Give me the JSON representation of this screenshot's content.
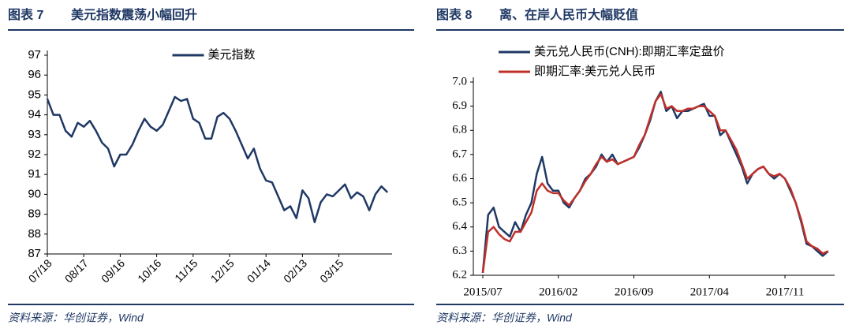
{
  "chart_data": [
    {
      "type": "line",
      "figure_label": "图表 7",
      "title": "美元指数震荡小幅回升",
      "source": "资料来源：华创证券，Wind",
      "legend": "upper center",
      "grid": false,
      "categories": [
        "07/18",
        null,
        null,
        null,
        null,
        null,
        "08/17",
        null,
        null,
        null,
        null,
        null,
        "09/16",
        null,
        null,
        null,
        null,
        null,
        "10/16",
        null,
        null,
        null,
        null,
        null,
        "11/15",
        null,
        null,
        null,
        null,
        null,
        "12/15",
        null,
        null,
        null,
        null,
        null,
        "01/14",
        null,
        null,
        null,
        null,
        null,
        "02/13",
        null,
        null,
        null,
        null,
        null,
        "03/15",
        null,
        null,
        null,
        null,
        null,
        null,
        null,
        null
      ],
      "ylim": [
        87,
        97
      ],
      "yticks": [
        87,
        88,
        89,
        90,
        91,
        92,
        93,
        94,
        95,
        96,
        97
      ],
      "series": [
        {
          "name": "美元指数",
          "color": "#1f3864",
          "values": [
            94.8,
            94.0,
            94.0,
            93.2,
            92.9,
            93.6,
            93.4,
            93.7,
            93.2,
            92.6,
            92.3,
            91.4,
            92.0,
            92.0,
            92.5,
            93.2,
            93.8,
            93.4,
            93.2,
            93.5,
            94.2,
            94.9,
            94.7,
            94.8,
            93.8,
            93.6,
            92.8,
            92.8,
            93.9,
            94.1,
            93.8,
            93.2,
            92.5,
            91.8,
            92.3,
            91.3,
            90.7,
            90.6,
            89.9,
            89.2,
            89.4,
            88.8,
            90.2,
            89.8,
            88.6,
            89.6,
            90.0,
            89.9,
            90.2,
            90.5,
            89.8,
            90.1,
            89.9,
            89.2,
            90.0,
            90.4,
            90.1
          ]
        }
      ]
    },
    {
      "type": "line",
      "figure_label": "图表 8",
      "title": "离、在岸人民币大幅贬值",
      "source": "资料来源：华创证券，Wind",
      "legend": "upper left",
      "grid": false,
      "categories": [
        "2015/07",
        null,
        null,
        null,
        null,
        null,
        null,
        null,
        null,
        null,
        null,
        null,
        null,
        null,
        "2016/02",
        null,
        null,
        null,
        null,
        null,
        null,
        null,
        null,
        null,
        null,
        null,
        null,
        null,
        "2016/09",
        null,
        null,
        null,
        null,
        null,
        null,
        null,
        null,
        null,
        null,
        null,
        null,
        null,
        "2017/04",
        null,
        null,
        null,
        null,
        null,
        null,
        null,
        null,
        null,
        null,
        null,
        null,
        null,
        "2017/11",
        null,
        null,
        null,
        null,
        null,
        null,
        null,
        null
      ],
      "ylim": [
        6.2,
        7
      ],
      "yticks": [
        6.2,
        6.3,
        6.4,
        6.5,
        6.6,
        6.7,
        6.8,
        6.9,
        {
          "value": 7,
          "label": "7.0"
        }
      ],
      "series": [
        {
          "name": "美元兑人民币(CNH):即期汇率定盘价",
          "color": "#1f3864",
          "values": [
            6.21,
            6.45,
            6.48,
            6.4,
            6.38,
            6.36,
            6.42,
            6.38,
            6.45,
            6.5,
            6.62,
            6.69,
            6.58,
            6.55,
            6.55,
            6.5,
            6.48,
            6.52,
            6.55,
            6.6,
            6.62,
            6.65,
            6.7,
            6.67,
            6.7,
            6.66,
            6.67,
            6.68,
            6.69,
            6.73,
            6.78,
            6.84,
            6.92,
            6.96,
            6.88,
            6.9,
            6.85,
            6.88,
            6.88,
            6.89,
            6.9,
            6.91,
            6.86,
            6.86,
            6.78,
            6.8,
            6.75,
            6.7,
            6.65,
            6.58,
            6.62,
            6.64,
            6.65,
            6.62,
            6.6,
            6.62,
            6.6,
            6.55,
            6.5,
            6.42,
            6.33,
            6.32,
            6.3,
            6.28,
            6.3
          ]
        },
        {
          "name": "即期汇率:美元兑人民币",
          "color": "#c0302a",
          "values": [
            6.21,
            6.38,
            6.4,
            6.37,
            6.35,
            6.34,
            6.38,
            6.38,
            6.42,
            6.46,
            6.55,
            6.58,
            6.55,
            6.54,
            6.54,
            6.51,
            6.49,
            6.52,
            6.55,
            6.59,
            6.62,
            6.66,
            6.69,
            6.67,
            6.68,
            6.66,
            6.67,
            6.68,
            6.69,
            6.74,
            6.78,
            6.85,
            6.92,
            6.95,
            6.89,
            6.9,
            6.88,
            6.88,
            6.89,
            6.89,
            6.9,
            6.9,
            6.88,
            6.86,
            6.8,
            6.8,
            6.76,
            6.72,
            6.66,
            6.6,
            6.62,
            6.64,
            6.65,
            6.62,
            6.61,
            6.62,
            6.6,
            6.56,
            6.5,
            6.43,
            6.34,
            6.32,
            6.31,
            6.29,
            6.3
          ]
        }
      ]
    }
  ]
}
